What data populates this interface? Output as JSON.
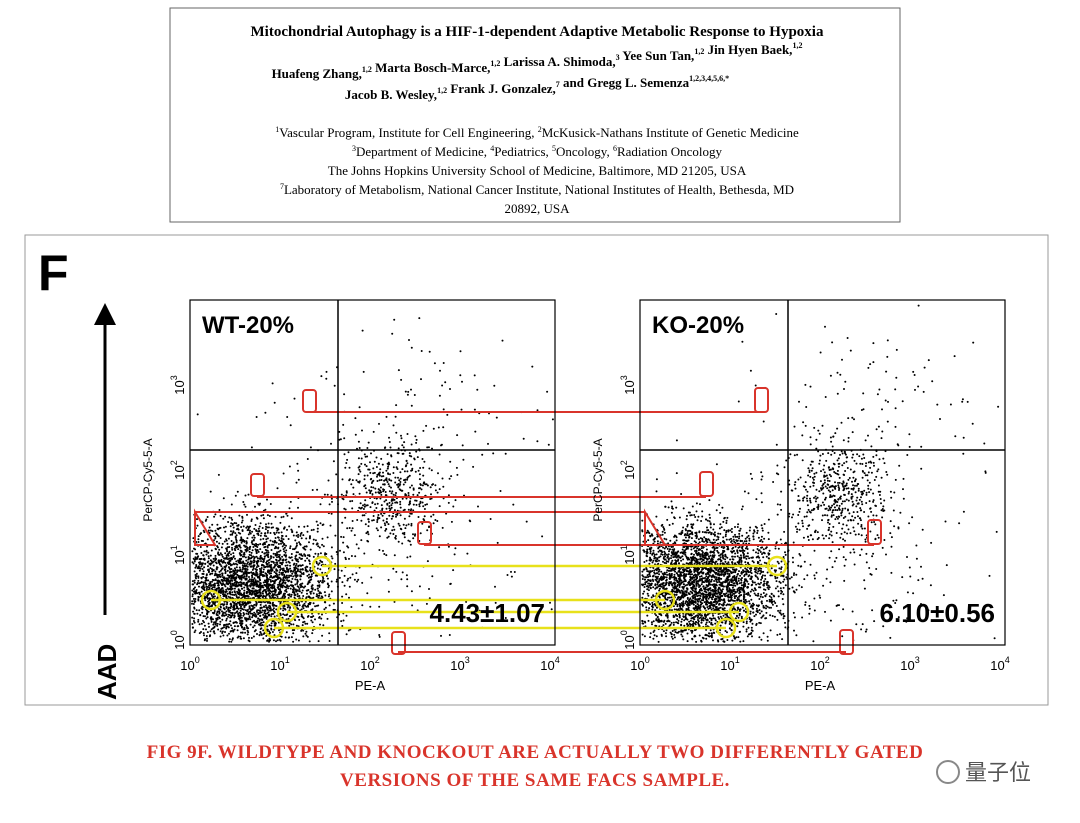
{
  "header": {
    "title": "Mitochondrial Autophagy is a HIF-1-dependent Adaptive Metabolic Response to Hypoxia",
    "author_lines": [
      [
        {
          "name": "Huafeng Zhang,",
          "sup": "1,2"
        },
        {
          "name": " Marta Bosch-Marce,",
          "sup": "1,2"
        },
        {
          "name": " Larissa A. Shimoda,",
          "sup": "3"
        },
        {
          "name": " Yee Sun Tan,",
          "sup": "1,2"
        },
        {
          "name": " Jin Hyen Baek,",
          "sup": "1,2"
        }
      ],
      [
        {
          "name": "Jacob B. Wesley,",
          "sup": "1,2"
        },
        {
          "name": "  Frank J. Gonzalez,",
          "sup": "7"
        },
        {
          "name": " and Gregg L. Semenza",
          "sup": "1,2,3,4,5,6,*"
        }
      ]
    ],
    "affiliation_lines": [
      [
        {
          "sup": "1",
          "text": "Vascular Program, Institute for Cell Engineering, "
        },
        {
          "sup": "2",
          "text": "McKusick-Nathans Institute of Genetic Medicine"
        }
      ],
      [
        {
          "sup": "3",
          "text": "Department of Medicine, "
        },
        {
          "sup": "4",
          "text": "Pediatrics, "
        },
        {
          "sup": "5",
          "text": "Oncology, "
        },
        {
          "sup": "6",
          "text": "Radiation Oncology"
        }
      ],
      [
        {
          "text": "The Johns Hopkins University School of Medicine, Baltimore, MD 21205, USA"
        }
      ],
      [
        {
          "sup": "7",
          "text": "Laboratory of Metabolism, National Cancer Institute, National Institutes of Health, Bethesda, MD"
        }
      ],
      [
        {
          "text": "20892, USA"
        }
      ]
    ]
  },
  "figure": {
    "panel_label": "F",
    "side_label": "AAD",
    "x_label": "PE-A",
    "y_label": "PerCP-Cy5-5-A",
    "ticks": [
      {
        "base": "10",
        "exp": "0"
      },
      {
        "base": "10",
        "exp": "1"
      },
      {
        "base": "10",
        "exp": "2"
      },
      {
        "base": "10",
        "exp": "3"
      },
      {
        "base": "10",
        "exp": "4"
      }
    ],
    "plots": [
      {
        "label": "WT-20%",
        "stat": "4.43±1.07"
      },
      {
        "label": "KO-20%",
        "stat": "6.10±0.56"
      }
    ]
  },
  "caption": {
    "lines": [
      "FIG 9F. WILDTYPE AND KNOCKOUT ARE ACTUALLY TWO DIFFERENTLY GATED",
      "VERSIONS OF THE SAME FACS SAMPLE."
    ]
  },
  "watermark": "量子位"
}
